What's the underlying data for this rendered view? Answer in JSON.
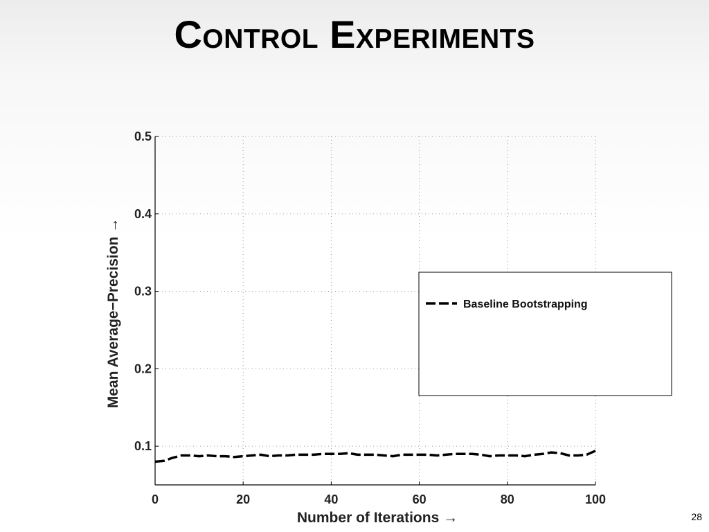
{
  "slide": {
    "title": "Control Experiments",
    "page_number": "28"
  },
  "chart_data": {
    "type": "line",
    "title": "",
    "xlabel": "Number of Iterations →",
    "ylabel": "Mean Average−Precision →",
    "xlim": [
      0,
      100
    ],
    "ylim": [
      0.05,
      0.5
    ],
    "x_ticks": [
      0,
      20,
      40,
      60,
      80,
      100
    ],
    "x_tick_labels": [
      "0",
      "20",
      "40",
      "60",
      "80",
      "100"
    ],
    "y_ticks": [
      0.1,
      0.2,
      0.3,
      0.4,
      0.5
    ],
    "y_tick_labels": [
      "0.1",
      "0.2",
      "0.3",
      "0.4",
      "0.5"
    ],
    "grid": true,
    "legend_position": "right",
    "series": [
      {
        "name": "Baseline Bootstrapping",
        "style": "dashed",
        "color": "#000000",
        "x": [
          0,
          2,
          4,
          6,
          8,
          10,
          12,
          14,
          16,
          18,
          20,
          22,
          24,
          26,
          28,
          30,
          32,
          34,
          36,
          38,
          40,
          42,
          44,
          46,
          48,
          50,
          52,
          54,
          56,
          58,
          60,
          62,
          64,
          66,
          68,
          70,
          72,
          74,
          76,
          78,
          80,
          82,
          84,
          86,
          88,
          90,
          92,
          94,
          96,
          98,
          100
        ],
        "y": [
          0.08,
          0.081,
          0.085,
          0.088,
          0.088,
          0.087,
          0.088,
          0.087,
          0.087,
          0.086,
          0.087,
          0.088,
          0.089,
          0.087,
          0.088,
          0.088,
          0.089,
          0.089,
          0.089,
          0.09,
          0.09,
          0.09,
          0.091,
          0.089,
          0.089,
          0.089,
          0.088,
          0.087,
          0.089,
          0.089,
          0.089,
          0.089,
          0.088,
          0.089,
          0.09,
          0.09,
          0.09,
          0.089,
          0.087,
          0.088,
          0.088,
          0.088,
          0.087,
          0.089,
          0.09,
          0.092,
          0.091,
          0.088,
          0.088,
          0.089,
          0.094
        ]
      }
    ]
  }
}
